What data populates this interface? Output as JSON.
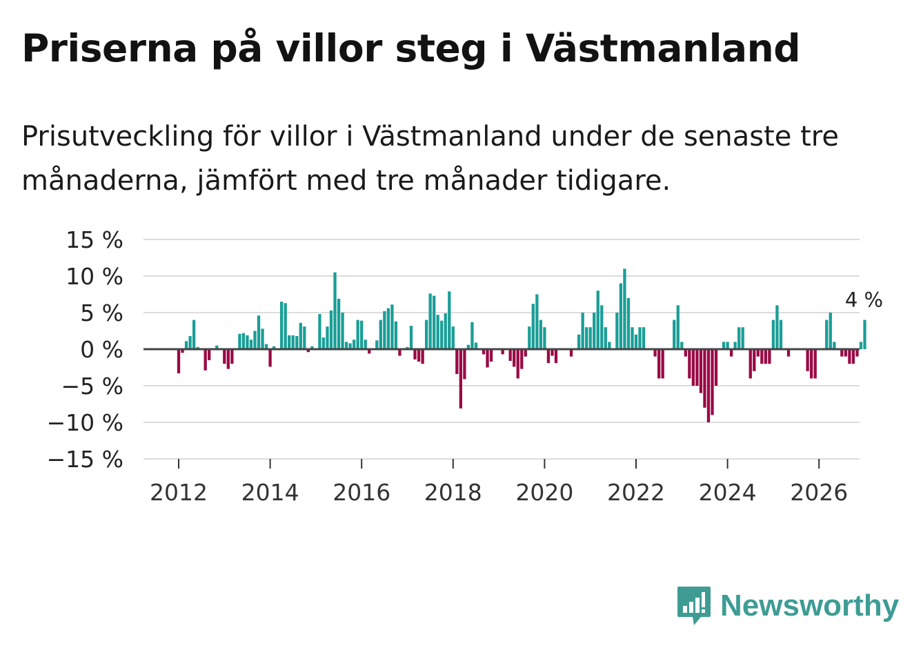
{
  "title": "Priserna på villor steg i Västmanland",
  "subtitle": "Prisutveckling för villor i Västmanland under de senaste tre månaderna, jämfört med tre månader tidigare.",
  "brand": "Newsworthy",
  "colors": {
    "positive": "#1a9e97",
    "negative": "#990a45",
    "grid": "#dcdcdc",
    "zero": "#444444",
    "brand": "#3e9c95"
  },
  "chart_data": {
    "type": "bar",
    "title": "Priserna på villor steg i Västmanland",
    "xlabel": "",
    "ylabel": "",
    "ylim": [
      -15,
      15
    ],
    "yticks": [
      15,
      10,
      5,
      0,
      -5,
      -10,
      -15
    ],
    "ytick_labels": [
      "15 %",
      "10 %",
      "5 %",
      "0 %",
      "−5 %",
      "−10 %",
      "−15 %"
    ],
    "xticks": [
      2012,
      2014,
      2016,
      2018,
      2020,
      2022,
      2024,
      2026
    ],
    "xtick_labels": [
      "2012",
      "2014",
      "2016",
      "2018",
      "2020",
      "2022",
      "2024",
      "2026"
    ],
    "start_year": 2011,
    "start_month": 1,
    "last_value_label": "4 %",
    "values": [
      0,
      0,
      0,
      0,
      0,
      0,
      0,
      0,
      0,
      0,
      0,
      0,
      -3.3,
      -0.5,
      1.1,
      1.8,
      4,
      0.3,
      0,
      -2.9,
      -1.5,
      0,
      0.5,
      0,
      -2,
      -2.7,
      -2,
      0,
      2.1,
      2.2,
      1.9,
      1.3,
      2.5,
      4.6,
      2.8,
      0.7,
      -2.4,
      0.4,
      0,
      6.5,
      6.3,
      1.9,
      1.9,
      1.8,
      3.6,
      3.1,
      -0.4,
      0.4,
      0,
      4.8,
      1.6,
      3.1,
      5.3,
      10.5,
      6.9,
      5,
      1,
      0.8,
      1.3,
      4,
      3.9,
      1.3,
      -0.6,
      0,
      1.2,
      4,
      5.2,
      5.6,
      6.1,
      3.8,
      -0.9,
      0,
      0.3,
      3.2,
      -1.4,
      -1.7,
      -2,
      4,
      7.6,
      7.3,
      4.7,
      3.9,
      4.9,
      7.9,
      3.1,
      -3.4,
      -8.1,
      -4.1,
      0.6,
      3.7,
      0.9,
      0,
      -0.7,
      -2.5,
      -1.7,
      0,
      0,
      -0.7,
      0,
      -1.6,
      -2.4,
      -4,
      -2.7,
      -1,
      3.1,
      6.2,
      7.5,
      4,
      3,
      -1.9,
      -0.9,
      -1.9,
      0,
      0,
      0,
      -1,
      0,
      2,
      5,
      3,
      3,
      5,
      8,
      6,
      3,
      1,
      0,
      5,
      9,
      11,
      7,
      3,
      2,
      3,
      3,
      0,
      0,
      -1,
      -4,
      -4,
      0,
      0,
      4,
      6,
      1,
      -1,
      -4,
      -5,
      -5,
      -6,
      -8,
      -10,
      -9,
      -5,
      0,
      1,
      1,
      -1,
      1,
      3,
      3,
      0,
      -4,
      -3,
      -1,
      -2,
      -2,
      -2,
      4,
      6,
      4,
      0,
      -1,
      0,
      0,
      0,
      0,
      -3,
      -4,
      -4,
      0,
      0,
      4,
      5,
      1,
      0,
      -1,
      -1,
      -2,
      -2,
      -1,
      1,
      4
    ]
  }
}
